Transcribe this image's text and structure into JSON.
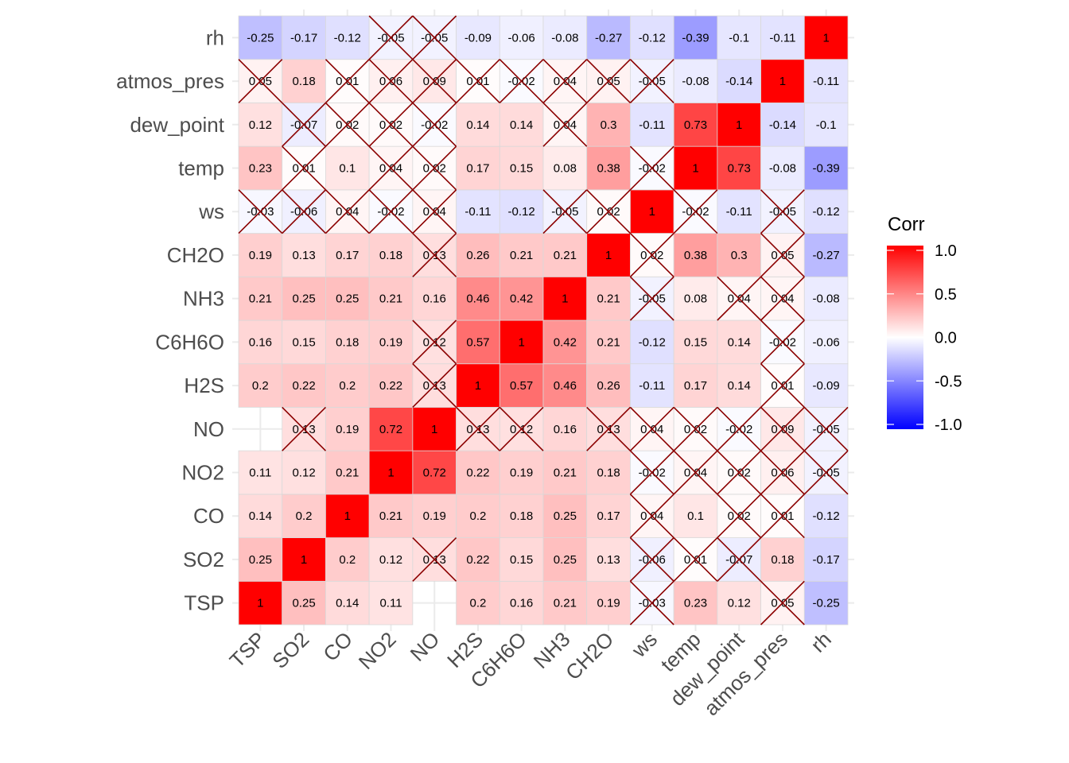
{
  "chart_data": {
    "type": "heatmap",
    "title": "",
    "xlabel": "",
    "ylabel": "",
    "variables": [
      "TSP",
      "SO2",
      "CO",
      "NO2",
      "NO",
      "H2S",
      "C6H6O",
      "NH3",
      "CH2O",
      "ws",
      "temp",
      "dew_point",
      "atmos_pres",
      "rh"
    ],
    "x_categories": [
      "TSP",
      "SO2",
      "CO",
      "NO2",
      "NO",
      "H2S",
      "C6H6O",
      "NH3",
      "CH2O",
      "ws",
      "temp",
      "dew_point",
      "atmos_pres",
      "rh"
    ],
    "y_categories_bottom_to_top": [
      "TSP",
      "SO2",
      "CO",
      "NO2",
      "NO",
      "H2S",
      "C6H6O",
      "NH3",
      "CH2O",
      "ws",
      "temp",
      "dew_point",
      "atmos_pres",
      "rh"
    ],
    "matrix": [
      [
        1,
        0.25,
        0.14,
        0.11,
        null,
        0.2,
        0.16,
        0.21,
        0.19,
        -0.03,
        0.23,
        0.12,
        0.05,
        -0.25
      ],
      [
        0.25,
        1,
        0.2,
        0.12,
        0.13,
        0.22,
        0.15,
        0.25,
        0.13,
        -0.06,
        0.01,
        -0.07,
        0.18,
        -0.17
      ],
      [
        0.14,
        0.2,
        1,
        0.21,
        0.19,
        0.2,
        0.18,
        0.25,
        0.17,
        0.04,
        0.1,
        0.02,
        0.01,
        -0.12
      ],
      [
        0.11,
        0.12,
        0.21,
        1,
        0.72,
        0.22,
        0.19,
        0.21,
        0.18,
        -0.02,
        0.04,
        0.02,
        0.06,
        -0.05
      ],
      [
        null,
        0.13,
        0.19,
        0.72,
        1,
        0.13,
        0.12,
        0.16,
        0.13,
        0.04,
        0.02,
        -0.02,
        0.09,
        -0.05
      ],
      [
        0.2,
        0.22,
        0.2,
        0.22,
        0.13,
        1,
        0.57,
        0.46,
        0.26,
        -0.11,
        0.17,
        0.14,
        0.01,
        -0.09
      ],
      [
        0.16,
        0.15,
        0.18,
        0.19,
        0.12,
        0.57,
        1,
        0.42,
        0.21,
        -0.12,
        0.15,
        0.14,
        -0.02,
        -0.06
      ],
      [
        0.21,
        0.25,
        0.25,
        0.21,
        0.16,
        0.46,
        0.42,
        1,
        0.21,
        -0.05,
        0.08,
        0.04,
        0.04,
        -0.08
      ],
      [
        0.19,
        0.13,
        0.17,
        0.18,
        0.13,
        0.26,
        0.21,
        0.21,
        1,
        0.02,
        0.38,
        0.3,
        0.05,
        -0.27
      ],
      [
        -0.03,
        -0.06,
        0.04,
        -0.02,
        0.04,
        -0.11,
        -0.12,
        -0.05,
        0.02,
        1,
        -0.02,
        -0.11,
        -0.05,
        -0.12
      ],
      [
        0.23,
        0.01,
        0.1,
        0.04,
        0.02,
        0.17,
        0.15,
        0.08,
        0.38,
        -0.02,
        1,
        0.73,
        -0.08,
        -0.39
      ],
      [
        0.12,
        -0.07,
        0.02,
        0.02,
        -0.02,
        0.14,
        0.14,
        0.04,
        0.3,
        -0.11,
        0.73,
        1,
        -0.14,
        -0.1
      ],
      [
        0.05,
        0.18,
        0.01,
        0.06,
        0.09,
        0.01,
        -0.02,
        0.04,
        0.05,
        -0.05,
        -0.08,
        -0.14,
        1,
        -0.11
      ],
      [
        -0.25,
        -0.17,
        -0.12,
        -0.05,
        -0.05,
        -0.09,
        -0.06,
        -0.08,
        -0.27,
        -0.12,
        -0.39,
        -0.1,
        -0.11,
        1
      ]
    ],
    "insignificant_pairs": [
      [
        "TSP",
        "ws"
      ],
      [
        "TSP",
        "atmos_pres"
      ],
      [
        "SO2",
        "NO"
      ],
      [
        "SO2",
        "ws"
      ],
      [
        "SO2",
        "temp"
      ],
      [
        "SO2",
        "dew_point"
      ],
      [
        "CO",
        "ws"
      ],
      [
        "CO",
        "dew_point"
      ],
      [
        "CO",
        "atmos_pres"
      ],
      [
        "NO2",
        "ws"
      ],
      [
        "NO2",
        "temp"
      ],
      [
        "NO2",
        "dew_point"
      ],
      [
        "NO2",
        "atmos_pres"
      ],
      [
        "NO2",
        "rh"
      ],
      [
        "NO",
        "H2S"
      ],
      [
        "NO",
        "C6H6O"
      ],
      [
        "NO",
        "CH2O"
      ],
      [
        "NO",
        "ws"
      ],
      [
        "NO",
        "temp"
      ],
      [
        "NO",
        "dew_point"
      ],
      [
        "NO",
        "atmos_pres"
      ],
      [
        "NO",
        "rh"
      ],
      [
        "H2S",
        "atmos_pres"
      ],
      [
        "C6H6O",
        "atmos_pres"
      ],
      [
        "NH3",
        "ws"
      ],
      [
        "NH3",
        "dew_point"
      ],
      [
        "NH3",
        "atmos_pres"
      ],
      [
        "CH2O",
        "ws"
      ],
      [
        "CH2O",
        "atmos_pres"
      ],
      [
        "ws",
        "temp"
      ],
      [
        "ws",
        "atmos_pres"
      ],
      [
        "TSP",
        "atmos_pres"
      ]
    ],
    "missing_pairs": [
      [
        "TSP",
        "NO"
      ]
    ],
    "legend": {
      "title": "Corr",
      "ticks": [
        "1.0",
        "0.5",
        "0.0",
        "-0.5",
        "-1.0"
      ],
      "range": [
        -1,
        1
      ],
      "low_color": "#0000FF",
      "mid_color": "#FFFFFF",
      "high_color": "#FF0000",
      "placement": "right"
    },
    "cross_color": "#8B0000",
    "grid": true
  }
}
